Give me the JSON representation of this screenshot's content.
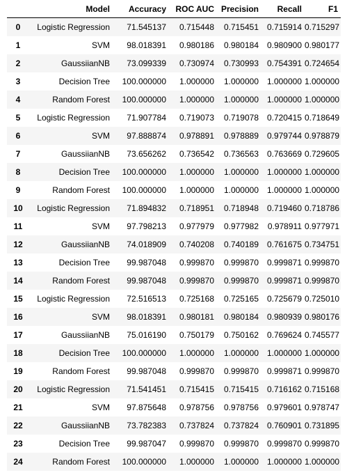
{
  "table": {
    "index_header": "",
    "columns": [
      "Model",
      "Accuracy",
      "ROC AUC",
      "Precision",
      "Recall",
      "F1"
    ],
    "rows": [
      {
        "index": "0",
        "cells": [
          "Logistic Regression",
          "71.545137",
          "0.715448",
          "0.715451",
          "0.715914",
          "0.715297"
        ]
      },
      {
        "index": "1",
        "cells": [
          "SVM",
          "98.018391",
          "0.980186",
          "0.980184",
          "0.980900",
          "0.980177"
        ]
      },
      {
        "index": "2",
        "cells": [
          "GaussiianNB",
          "73.099339",
          "0.730974",
          "0.730993",
          "0.754391",
          "0.724654"
        ]
      },
      {
        "index": "3",
        "cells": [
          "Decision Tree",
          "100.000000",
          "1.000000",
          "1.000000",
          "1.000000",
          "1.000000"
        ]
      },
      {
        "index": "4",
        "cells": [
          "Random Forest",
          "100.000000",
          "1.000000",
          "1.000000",
          "1.000000",
          "1.000000"
        ]
      },
      {
        "index": "5",
        "cells": [
          "Logistic Regression",
          "71.907784",
          "0.719073",
          "0.719078",
          "0.720415",
          "0.718649"
        ]
      },
      {
        "index": "6",
        "cells": [
          "SVM",
          "97.888874",
          "0.978891",
          "0.978889",
          "0.979744",
          "0.978879"
        ]
      },
      {
        "index": "7",
        "cells": [
          "GaussiianNB",
          "73.656262",
          "0.736542",
          "0.736563",
          "0.763669",
          "0.729605"
        ]
      },
      {
        "index": "8",
        "cells": [
          "Decision Tree",
          "100.000000",
          "1.000000",
          "1.000000",
          "1.000000",
          "1.000000"
        ]
      },
      {
        "index": "9",
        "cells": [
          "Random Forest",
          "100.000000",
          "1.000000",
          "1.000000",
          "1.000000",
          "1.000000"
        ]
      },
      {
        "index": "10",
        "cells": [
          "Logistic Regression",
          "71.894832",
          "0.718951",
          "0.718948",
          "0.719460",
          "0.718786"
        ]
      },
      {
        "index": "11",
        "cells": [
          "SVM",
          "97.798213",
          "0.977979",
          "0.977982",
          "0.978911",
          "0.977971"
        ]
      },
      {
        "index": "12",
        "cells": [
          "GaussiianNB",
          "74.018909",
          "0.740208",
          "0.740189",
          "0.761675",
          "0.734751"
        ]
      },
      {
        "index": "13",
        "cells": [
          "Decision Tree",
          "99.987048",
          "0.999870",
          "0.999870",
          "0.999871",
          "0.999870"
        ]
      },
      {
        "index": "14",
        "cells": [
          "Random Forest",
          "99.987048",
          "0.999870",
          "0.999870",
          "0.999871",
          "0.999870"
        ]
      },
      {
        "index": "15",
        "cells": [
          "Logistic Regression",
          "72.516513",
          "0.725168",
          "0.725165",
          "0.725679",
          "0.725010"
        ]
      },
      {
        "index": "16",
        "cells": [
          "SVM",
          "98.018391",
          "0.980181",
          "0.980184",
          "0.980939",
          "0.980176"
        ]
      },
      {
        "index": "17",
        "cells": [
          "GaussiianNB",
          "75.016190",
          "0.750179",
          "0.750162",
          "0.769624",
          "0.745577"
        ]
      },
      {
        "index": "18",
        "cells": [
          "Decision Tree",
          "100.000000",
          "1.000000",
          "1.000000",
          "1.000000",
          "1.000000"
        ]
      },
      {
        "index": "19",
        "cells": [
          "Random Forest",
          "99.987048",
          "0.999870",
          "0.999870",
          "0.999871",
          "0.999870"
        ]
      },
      {
        "index": "20",
        "cells": [
          "Logistic Regression",
          "71.541451",
          "0.715415",
          "0.715415",
          "0.716162",
          "0.715168"
        ]
      },
      {
        "index": "21",
        "cells": [
          "SVM",
          "97.875648",
          "0.978756",
          "0.978756",
          "0.979601",
          "0.978747"
        ]
      },
      {
        "index": "22",
        "cells": [
          "GaussiianNB",
          "73.782383",
          "0.737824",
          "0.737824",
          "0.760901",
          "0.731895"
        ]
      },
      {
        "index": "23",
        "cells": [
          "Decision Tree",
          "99.987047",
          "0.999870",
          "0.999870",
          "0.999870",
          "0.999870"
        ]
      },
      {
        "index": "24",
        "cells": [
          "Random Forest",
          "100.000000",
          "1.000000",
          "1.000000",
          "1.000000",
          "1.000000"
        ]
      }
    ]
  }
}
